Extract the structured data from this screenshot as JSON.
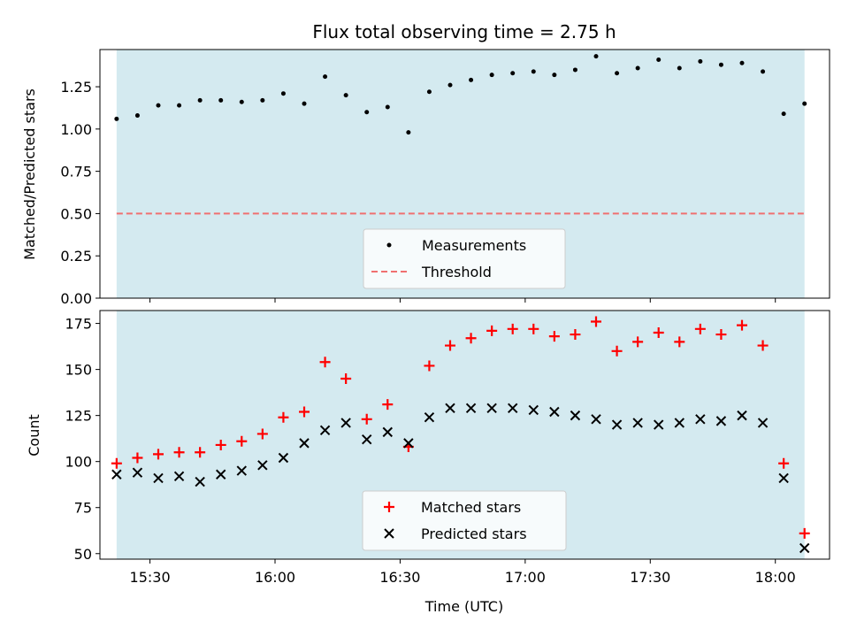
{
  "colors": {
    "observing_band": "#d4eaf0",
    "measurement": "#000000",
    "threshold": "#f07070",
    "matched": "#ff0000",
    "predicted": "#000000"
  },
  "chart_data": [
    {
      "type": "scatter",
      "title": "Flux total observing time = 2.75 h",
      "xlabel": "",
      "ylabel": "Matched/Predicted stars",
      "xlim": [
        "15:18",
        "18:13"
      ],
      "ylim": [
        0,
        1.47
      ],
      "y_ticks": [
        0.0,
        0.25,
        0.5,
        0.75,
        1.0,
        1.25
      ],
      "y_tick_labels": [
        "0.00",
        "0.25",
        "0.50",
        "0.75",
        "1.00",
        "1.25"
      ],
      "shaded_span": [
        "15:22",
        "18:07"
      ],
      "threshold": 0.5,
      "legend": {
        "placement": "lower center",
        "entries": [
          "Measurements",
          "Threshold"
        ]
      },
      "series": [
        {
          "name": "Measurements",
          "x": [
            "15:22",
            "15:27",
            "15:32",
            "15:37",
            "15:42",
            "15:47",
            "15:52",
            "15:57",
            "16:02",
            "16:07",
            "16:12",
            "16:17",
            "16:22",
            "16:27",
            "16:32",
            "16:37",
            "16:42",
            "16:47",
            "16:52",
            "16:57",
            "17:02",
            "17:07",
            "17:12",
            "17:17",
            "17:22",
            "17:27",
            "17:32",
            "17:37",
            "17:42",
            "17:47",
            "17:52",
            "17:57",
            "18:02",
            "18:07"
          ],
          "y": [
            1.06,
            1.08,
            1.14,
            1.14,
            1.17,
            1.17,
            1.16,
            1.17,
            1.21,
            1.15,
            1.31,
            1.2,
            1.1,
            1.13,
            0.98,
            1.22,
            1.26,
            1.29,
            1.32,
            1.33,
            1.34,
            1.32,
            1.35,
            1.43,
            1.33,
            1.36,
            1.41,
            1.36,
            1.4,
            1.38,
            1.39,
            1.34,
            1.09,
            1.15
          ]
        },
        {
          "name": "Threshold",
          "x": [
            "15:22",
            "18:07"
          ],
          "y": [
            0.5,
            0.5
          ]
        }
      ]
    },
    {
      "type": "scatter",
      "title": "",
      "xlabel": "Time (UTC)",
      "ylabel": "Count",
      "xlim": [
        "15:18",
        "18:13"
      ],
      "ylim": [
        47,
        182
      ],
      "x_ticks": [
        "15:30",
        "16:00",
        "16:30",
        "17:00",
        "17:30",
        "18:00"
      ],
      "y_ticks": [
        50,
        75,
        100,
        125,
        150,
        175
      ],
      "shaded_span": [
        "15:22",
        "18:07"
      ],
      "legend": {
        "placement": "lower center",
        "entries": [
          "Matched stars",
          "Predicted stars"
        ]
      },
      "series": [
        {
          "name": "Matched stars",
          "x": [
            "15:22",
            "15:27",
            "15:32",
            "15:37",
            "15:42",
            "15:47",
            "15:52",
            "15:57",
            "16:02",
            "16:07",
            "16:12",
            "16:17",
            "16:22",
            "16:27",
            "16:32",
            "16:37",
            "16:42",
            "16:47",
            "16:52",
            "16:57",
            "17:02",
            "17:07",
            "17:12",
            "17:17",
            "17:22",
            "17:27",
            "17:32",
            "17:37",
            "17:42",
            "17:47",
            "17:52",
            "17:57",
            "18:02",
            "18:07"
          ],
          "y": [
            99,
            102,
            104,
            105,
            105,
            109,
            111,
            115,
            124,
            127,
            154,
            145,
            123,
            131,
            108,
            152,
            163,
            167,
            171,
            172,
            172,
            168,
            169,
            176,
            160,
            165,
            170,
            165,
            172,
            169,
            174,
            163,
            99,
            61
          ]
        },
        {
          "name": "Predicted stars",
          "x": [
            "15:22",
            "15:27",
            "15:32",
            "15:37",
            "15:42",
            "15:47",
            "15:52",
            "15:57",
            "16:02",
            "16:07",
            "16:12",
            "16:17",
            "16:22",
            "16:27",
            "16:32",
            "16:37",
            "16:42",
            "16:47",
            "16:52",
            "16:57",
            "17:02",
            "17:07",
            "17:12",
            "17:17",
            "17:22",
            "17:27",
            "17:32",
            "17:37",
            "17:42",
            "17:47",
            "17:52",
            "17:57",
            "18:02",
            "18:07"
          ],
          "y": [
            93,
            94,
            91,
            92,
            89,
            93,
            95,
            98,
            102,
            110,
            117,
            121,
            112,
            116,
            110,
            124,
            129,
            129,
            129,
            129,
            128,
            127,
            125,
            123,
            120,
            121,
            120,
            121,
            123,
            122,
            125,
            121,
            91,
            53
          ]
        }
      ]
    }
  ]
}
